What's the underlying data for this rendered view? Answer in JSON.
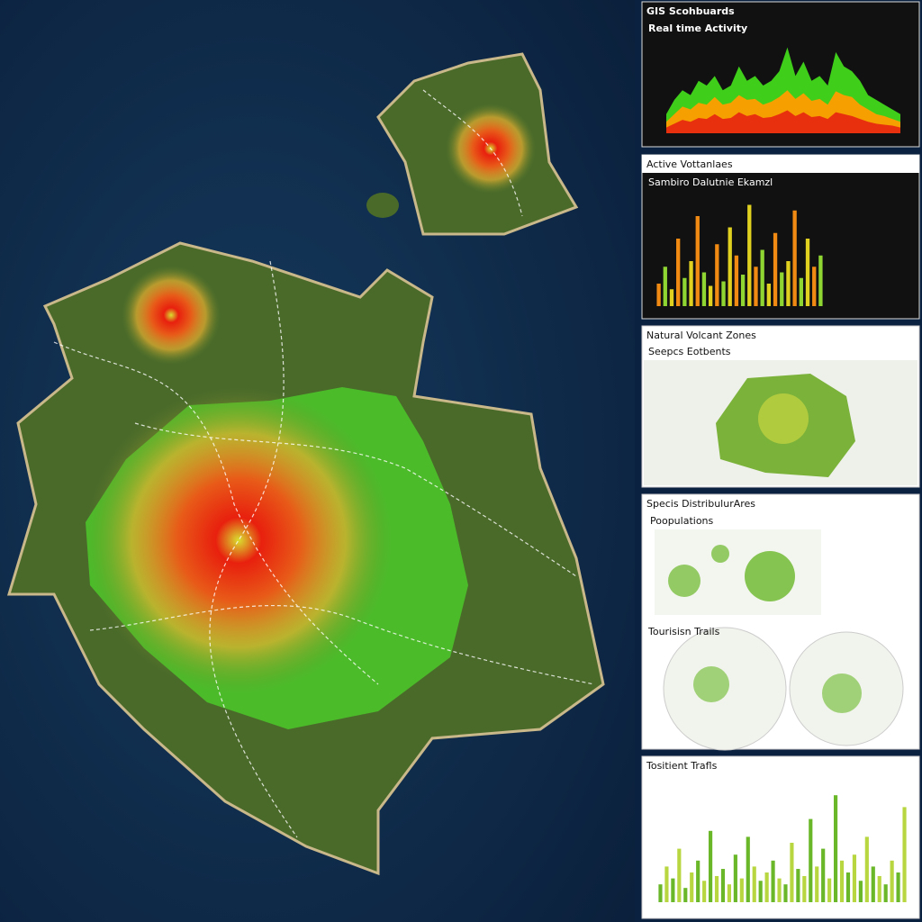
{
  "dashboard": {
    "title": "GIS Scohbuards",
    "activity": {
      "subtitle": "Real time Activity",
      "type": "area",
      "ylim": [
        0,
        100
      ],
      "layers": [
        {
          "color": "#3fcf1a",
          "values": [
            20,
            35,
            45,
            40,
            55,
            50,
            60,
            45,
            50,
            70,
            55,
            60,
            50,
            55,
            65,
            90,
            60,
            75,
            55,
            60,
            50,
            85,
            70,
            65,
            55,
            40,
            35,
            30,
            25,
            20
          ]
        },
        {
          "color": "#f5a000",
          "values": [
            12,
            20,
            28,
            25,
            32,
            30,
            38,
            30,
            32,
            40,
            35,
            36,
            30,
            33,
            38,
            45,
            36,
            42,
            34,
            36,
            30,
            44,
            40,
            38,
            30,
            25,
            20,
            18,
            15,
            12
          ]
        },
        {
          "color": "#e8300e",
          "values": [
            6,
            10,
            14,
            12,
            16,
            15,
            20,
            15,
            16,
            22,
            18,
            20,
            16,
            17,
            20,
            24,
            18,
            22,
            17,
            18,
            15,
            22,
            20,
            18,
            15,
            12,
            10,
            9,
            8,
            6
          ]
        }
      ]
    },
    "volcanoes": {
      "title": "Active Vottanlaes",
      "subtitle": "Sambiro Dalutnie Ekamzl",
      "type": "bar",
      "ylim": [
        0,
        100
      ],
      "colors": [
        "#f08a12",
        "#8fd633",
        "#e0d020"
      ],
      "values": [
        20,
        35,
        15,
        60,
        25,
        40,
        80,
        30,
        18,
        55,
        22,
        70,
        45,
        28,
        90,
        35,
        50,
        20,
        65,
        30,
        40,
        85,
        25,
        60,
        35,
        45
      ]
    },
    "zones": {
      "title": "Natural Volcant Zones",
      "subtitle": "Seepcs Eotbents"
    },
    "species": {
      "title": "Specis DistribulurAres",
      "subtitle": "Poopulations",
      "trails": "Tourisisn Trails"
    },
    "traffic": {
      "title": "Tositient Trafls",
      "type": "bar",
      "ylim": [
        0,
        100
      ],
      "colors": [
        "#6ab82a",
        "#b8d640"
      ],
      "values": [
        15,
        30,
        20,
        45,
        12,
        25,
        35,
        18,
        60,
        22,
        28,
        15,
        40,
        20,
        55,
        30,
        18,
        25,
        35,
        20,
        15,
        50,
        28,
        22,
        70,
        30,
        45,
        20,
        90,
        35,
        25,
        40,
        18,
        55,
        30,
        22,
        15,
        35,
        25,
        80
      ]
    }
  }
}
